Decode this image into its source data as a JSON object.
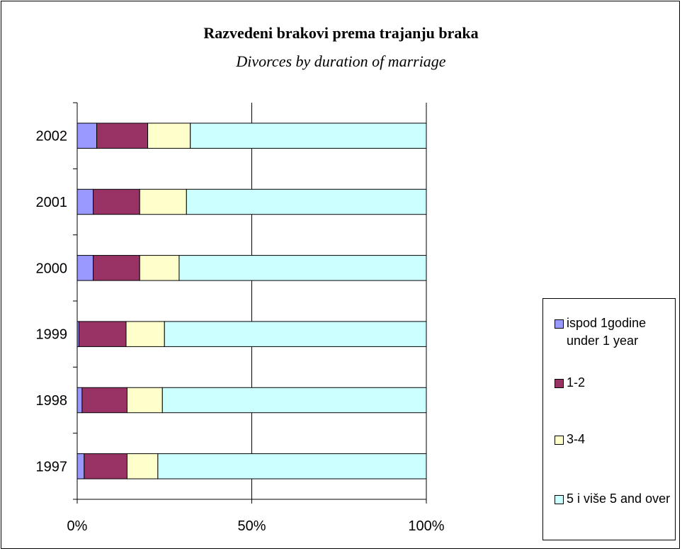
{
  "chart_data": {
    "type": "bar",
    "orientation": "horizontal",
    "stacked": true,
    "normalized": true,
    "title": "Razvedeni brakovi prema trajanju braka",
    "subtitle": "Divorces by duration of marriage",
    "categories": [
      "1997",
      "1998",
      "1999",
      "2000",
      "2001",
      "2002"
    ],
    "series": [
      {
        "name": "ispod 1godine under 1 year",
        "color": "#9999ff",
        "values": [
          2.0,
          1.4,
          0.5,
          4.6,
          4.6,
          5.6
        ]
      },
      {
        "name": "1-2",
        "color": "#993366",
        "values": [
          12.3,
          12.9,
          13.5,
          13.3,
          13.3,
          14.6
        ]
      },
      {
        "name": "3-4",
        "color": "#ffffcc",
        "values": [
          8.8,
          10.1,
          11.0,
          11.3,
          13.4,
          12.2
        ]
      },
      {
        "name": "5 i više 5 and over",
        "color": "#ccffff",
        "values": [
          76.9,
          75.6,
          75.0,
          70.8,
          68.7,
          67.6
        ]
      }
    ],
    "x_ticks": [
      "0%",
      "50%",
      "100%"
    ],
    "xlim": [
      0,
      100
    ],
    "grid": "vertical",
    "legend_position": "right"
  }
}
